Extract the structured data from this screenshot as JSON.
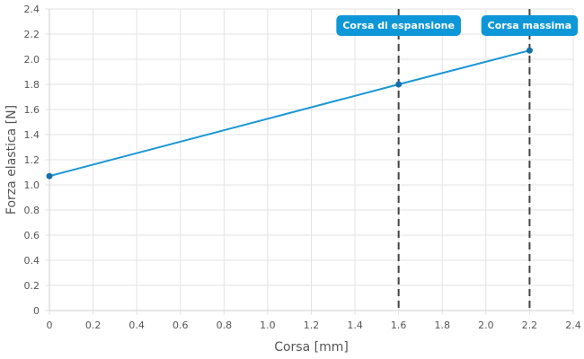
{
  "chart_data": {
    "type": "line",
    "xlabel": "Corsa [mm]",
    "ylabel": "Forza elastica [N]",
    "xlim": [
      0,
      2.4
    ],
    "ylim": [
      0,
      2.4
    ],
    "x_ticks": [
      "0",
      "0.2",
      "0.4",
      "0.6",
      "0.8",
      "1.0",
      "1.2",
      "1.4",
      "1.6",
      "1.8",
      "2.0",
      "2.2",
      "2.4"
    ],
    "y_ticks": [
      "0",
      "0.2",
      "0.4",
      "0.6",
      "0.8",
      "1.0",
      "1.2",
      "1.4",
      "1.6",
      "1.8",
      "2.0",
      "2.2",
      "2.4"
    ],
    "grid": true,
    "series": [
      {
        "x": [
          0,
          1.6,
          2.2
        ],
        "y": [
          1.07,
          1.8,
          2.07
        ],
        "color": "#1a96d4"
      }
    ],
    "annotations": [
      {
        "x": 1.6,
        "label": "Corsa di espansione"
      },
      {
        "x": 2.2,
        "label": "Corsa massima"
      }
    ],
    "colors": {
      "line": "#1a96d4",
      "point": "#1670a8",
      "annotation_bg": "#0e97d8",
      "marker_line": "#444444",
      "grid": "#e3e3e3"
    }
  }
}
